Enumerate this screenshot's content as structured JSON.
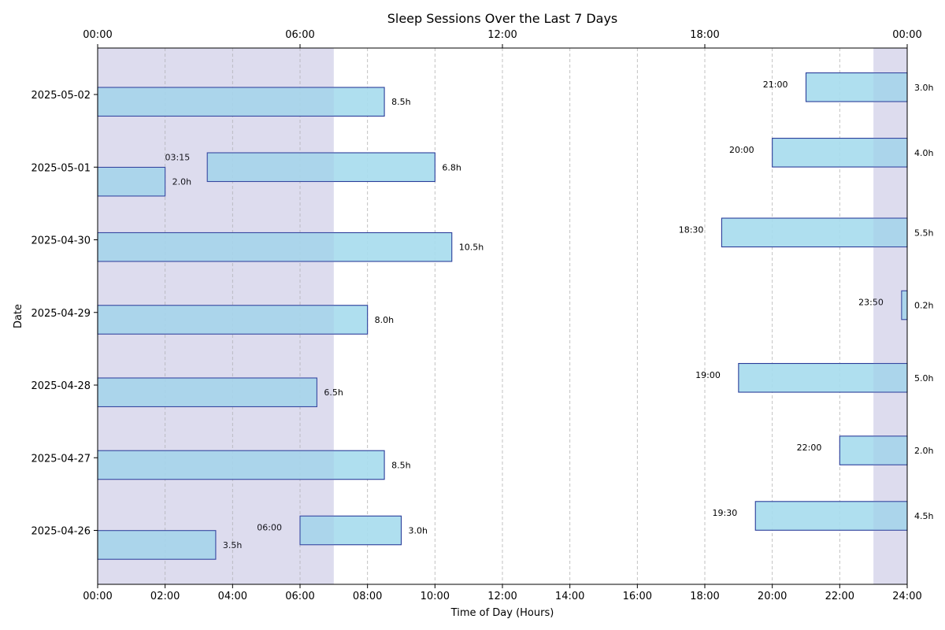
{
  "chart_data": {
    "type": "bar",
    "orientation": "horizontal-timeline",
    "title": "Sleep Sessions Over the Last 7 Days",
    "xlabel": "Time of Day (Hours)",
    "ylabel": "Date",
    "xlim": [
      0,
      24
    ],
    "x_ticks_bottom": [
      "00:00",
      "02:00",
      "04:00",
      "06:00",
      "08:00",
      "10:00",
      "12:00",
      "14:00",
      "16:00",
      "18:00",
      "20:00",
      "22:00",
      "24:00"
    ],
    "x_ticks_top": [
      "00:00",
      "06:00",
      "12:00",
      "18:00",
      "00:00"
    ],
    "categories": [
      "2025-04-26",
      "2025-04-27",
      "2025-04-28",
      "2025-04-29",
      "2025-04-30",
      "2025-05-01",
      "2025-05-02"
    ],
    "shaded_night_windows": [
      [
        0,
        7
      ],
      [
        23,
        24
      ]
    ],
    "grid": "vertical dashed",
    "colors": {
      "bar_fill": "#a8dcee",
      "bar_edge": "#2a3d9a",
      "night_shade": "#e4e3f1",
      "grid": "#bbbbbb"
    },
    "sessions": [
      {
        "date": "2025-04-26",
        "start": 0,
        "end": 3.5,
        "duration_label": "3.5h",
        "start_label": "",
        "offset": -0.2
      },
      {
        "date": "2025-04-26",
        "start": 6,
        "end": 9,
        "duration_label": "3.0h",
        "start_label": "06:00",
        "offset": 0
      },
      {
        "date": "2025-04-26",
        "start": 19.5,
        "end": 24,
        "duration_label": "4.5h",
        "start_label": "19:30",
        "offset": 0.2
      },
      {
        "date": "2025-04-27",
        "start": 0,
        "end": 8.5,
        "duration_label": "8.5h",
        "start_label": "",
        "offset": -0.1
      },
      {
        "date": "2025-04-27",
        "start": 22,
        "end": 24,
        "duration_label": "2.0h",
        "start_label": "22:00",
        "offset": 0.1
      },
      {
        "date": "2025-04-28",
        "start": 0,
        "end": 6.5,
        "duration_label": "6.5h",
        "start_label": "",
        "offset": -0.1
      },
      {
        "date": "2025-04-28",
        "start": 19,
        "end": 24,
        "duration_label": "5.0h",
        "start_label": "19:00",
        "offset": 0.1
      },
      {
        "date": "2025-04-29",
        "start": 0,
        "end": 8,
        "duration_label": "8.0h",
        "start_label": "",
        "offset": -0.1
      },
      {
        "date": "2025-04-29",
        "start": 23.8333,
        "end": 24,
        "duration_label": "0.2h",
        "start_label": "23:50",
        "offset": 0.1
      },
      {
        "date": "2025-04-30",
        "start": 0,
        "end": 10.5,
        "duration_label": "10.5h",
        "start_label": "",
        "offset": -0.1
      },
      {
        "date": "2025-04-30",
        "start": 18.5,
        "end": 24,
        "duration_label": "5.5h",
        "start_label": "18:30",
        "offset": 0.1
      },
      {
        "date": "2025-05-01",
        "start": 0,
        "end": 2,
        "duration_label": "2.0h",
        "start_label": "",
        "offset": -0.2
      },
      {
        "date": "2025-05-01",
        "start": 3.25,
        "end": 10,
        "duration_label": "6.8h",
        "start_label": "03:15",
        "offset": 0
      },
      {
        "date": "2025-05-01",
        "start": 20,
        "end": 24,
        "duration_label": "4.0h",
        "start_label": "20:00",
        "offset": 0.2
      },
      {
        "date": "2025-05-02",
        "start": 0,
        "end": 8.5,
        "duration_label": "8.5h",
        "start_label": "",
        "offset": -0.1
      },
      {
        "date": "2025-05-02",
        "start": 21,
        "end": 24,
        "duration_label": "3.0h",
        "start_label": "21:00",
        "offset": 0.1
      }
    ]
  }
}
